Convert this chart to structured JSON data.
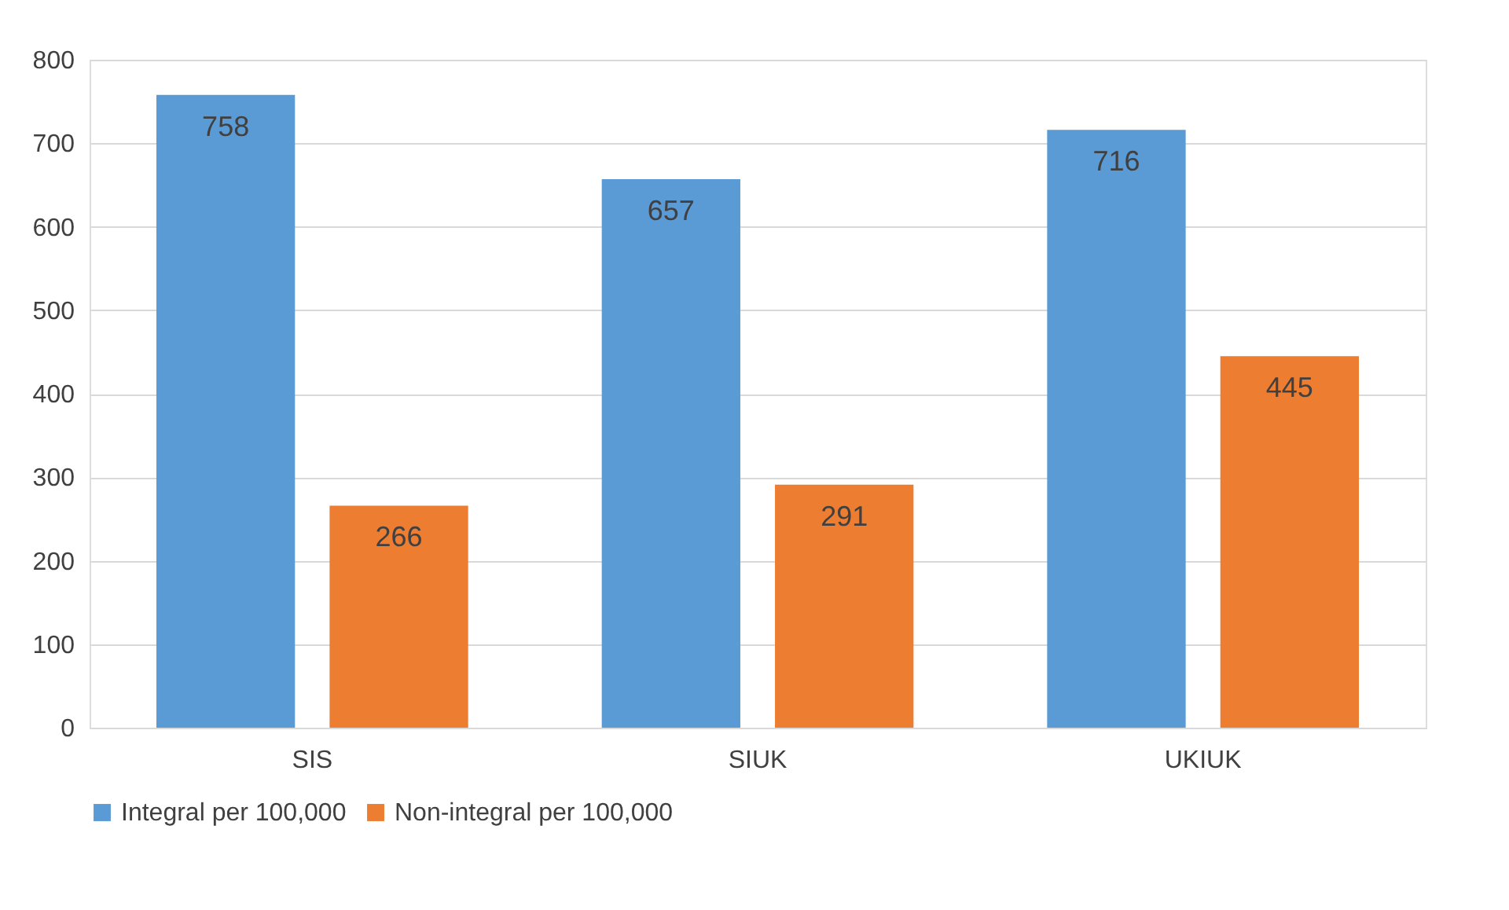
{
  "chart_data": {
    "type": "bar",
    "categories": [
      "SIS",
      "SIUK",
      "UKIUK"
    ],
    "series": [
      {
        "name": "Integral per 100,000",
        "color": "#5b9bd5",
        "values": [
          758,
          657,
          716
        ]
      },
      {
        "name": "Non-integral per 100,000",
        "color": "#ed7d31",
        "values": [
          266,
          291,
          445
        ]
      }
    ],
    "ylim": [
      0,
      800
    ],
    "yticks": [
      0,
      100,
      200,
      300,
      400,
      500,
      600,
      700,
      800
    ],
    "grid": "y",
    "legend": "bottom",
    "data_labels": true
  }
}
